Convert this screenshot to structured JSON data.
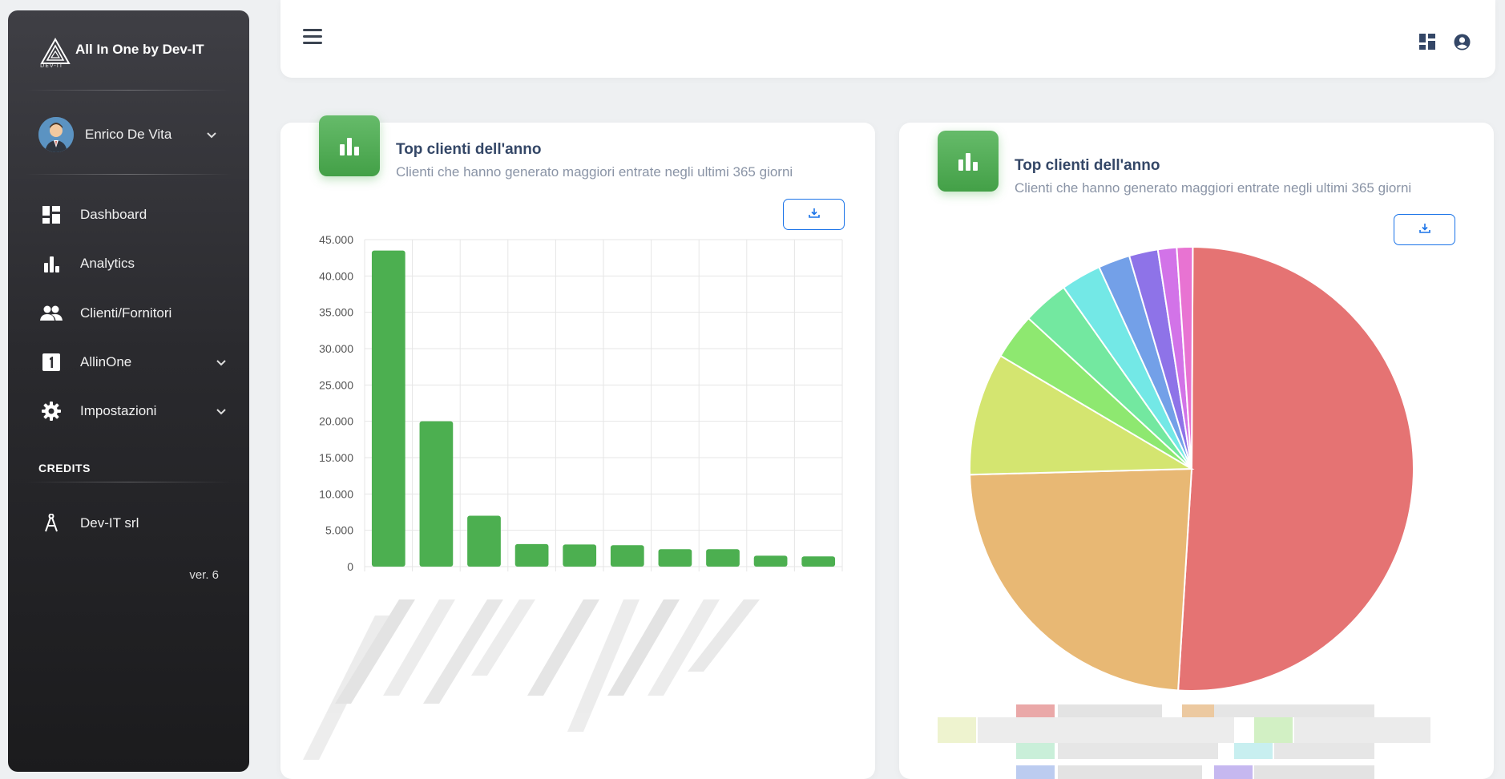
{
  "brand": {
    "title": "All In One by Dev-IT",
    "logo_caption": "DEV-IT"
  },
  "user": {
    "name": "Enrico De Vita"
  },
  "nav": [
    {
      "label": "Dashboard",
      "icon": "dashboard-icon"
    },
    {
      "label": "Analytics",
      "icon": "bar-chart-icon"
    },
    {
      "label": "Clienti/Fornitori",
      "icon": "people-icon"
    },
    {
      "label": "AllinOne",
      "icon": "number-one-icon"
    },
    {
      "label": "Impostazioni",
      "icon": "gear-icon"
    }
  ],
  "credits": {
    "heading": "CREDITS",
    "company": "Dev-IT srl",
    "version": "ver. 6"
  },
  "cards": [
    {
      "title": "Top clienti dell'anno",
      "subtitle": "Clienti che hanno generato maggiori entrate negli ultimi 365 giorni"
    },
    {
      "title": "Top clienti dell'anno",
      "subtitle": "Clienti che hanno generato maggiori entrate negli ultimi 365 giorni"
    }
  ],
  "chart_data": [
    {
      "type": "bar",
      "categories": [
        "",
        "",
        "",
        "",
        "",
        "",
        "",
        "",
        "",
        ""
      ],
      "values": [
        43500,
        20000,
        7000,
        3100,
        3050,
        2950,
        2400,
        2400,
        1500,
        1400
      ],
      "ylim": [
        0,
        45000
      ],
      "yticks": [
        "0",
        "5.000",
        "10.000",
        "15.000",
        "20.000",
        "25.000",
        "30.000",
        "35.000",
        "40.000",
        "45.000"
      ],
      "grid": true,
      "color": "#4caf50"
    },
    {
      "type": "pie",
      "values": [
        48.5,
        22.5,
        8.5,
        3.2,
        3.2,
        2.8,
        2.2,
        2.0,
        1.3,
        1.1
      ],
      "colors": [
        "#e57373",
        "#e8b874",
        "#d4e570",
        "#8ee870",
        "#73e8a0",
        "#73e8e6",
        "#73a0e8",
        "#8e73e8",
        "#d273e8",
        "#e873d2"
      ]
    }
  ]
}
